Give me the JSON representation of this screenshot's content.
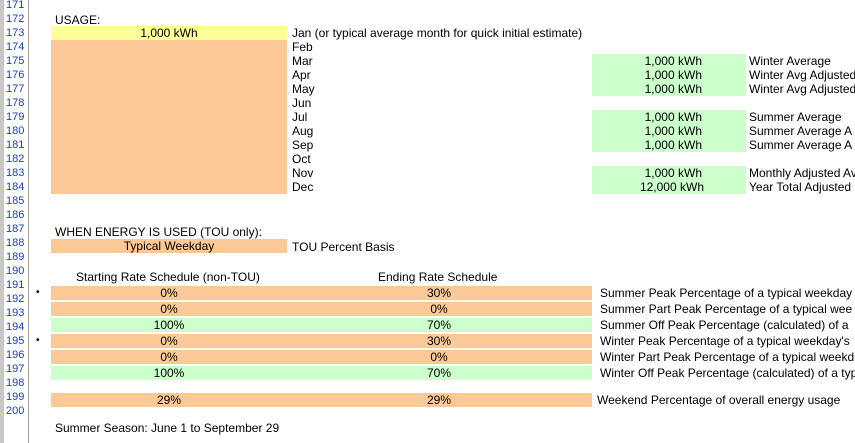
{
  "row_numbers": [
    "171",
    "172",
    "173",
    "174",
    "175",
    "176",
    "177",
    "178",
    "179",
    "180",
    "181",
    "182",
    "183",
    "184",
    "185",
    "186",
    "187",
    "188",
    "189",
    "190",
    "191",
    "192",
    "193",
    "194",
    "195",
    "196",
    "197",
    "198",
    "199",
    "200"
  ],
  "usage": {
    "title": "USAGE:",
    "jan_value": "1,000  kWh",
    "months": [
      "Jan (or typical average month for quick initial estimate)",
      "Feb",
      "Mar",
      "Apr",
      "May",
      "Jun",
      "Jul",
      "Aug",
      "Sep",
      "Oct",
      "Nov",
      "Dec"
    ],
    "winter": [
      {
        "value": "1,000  kWh",
        "label": "Winter Average"
      },
      {
        "value": "1,000  kWh",
        "label": "Winter Avg Adjusted"
      },
      {
        "value": "1,000  kWh",
        "label": "Winter Avg Adjusted"
      }
    ],
    "summer": [
      {
        "value": "1,000  kWh",
        "label": "Summer Average"
      },
      {
        "value": "1,000  kWh",
        "label": "Summer Average A"
      },
      {
        "value": "1,000  kWh",
        "label": "Summer Average A"
      }
    ],
    "totals": [
      {
        "value": "1,000  kWh",
        "label": "Monthly Adjusted Av"
      },
      {
        "value": "12,000  kWh",
        "label": "Year Total Adjusted"
      }
    ]
  },
  "tou": {
    "title": "WHEN ENERGY IS USED (TOU only):",
    "weekday_label": "Typical Weekday",
    "basis_label": "TOU Percent Basis",
    "col_start": "Starting Rate Schedule  (non-TOU)",
    "col_end": "Ending Rate Schedule",
    "bullet": "•",
    "rows": [
      {
        "start": "0%",
        "end": "30%",
        "label": "Summer Peak Percentage of a typical weekday"
      },
      {
        "start": "0%",
        "end": "0%",
        "label": "Summer Part Peak Percentage of a typical wee"
      },
      {
        "start": "100%",
        "end": "70%",
        "label": "Summer Off Peak Percentage (calculated) of a"
      },
      {
        "start": "0%",
        "end": "30%",
        "label": "Winter Peak Percentage of a typical weekday's"
      },
      {
        "start": "0%",
        "end": "0%",
        "label": "Winter Part Peak Percentage of a typical weekd"
      },
      {
        "start": "100%",
        "end": "70%",
        "label": "Winter Off Peak Percentage (calculated) of a typ"
      }
    ],
    "weekend": {
      "start": "29%",
      "end": "29%",
      "label": "Weekend Percentage of overall energy usage"
    }
  },
  "season_note": "Summer Season: June 1 to September 29",
  "colors": {
    "peach": "#fcc996",
    "yellow": "#ffff99",
    "green": "#ccffcc",
    "rownum": "#1a3dc1"
  }
}
